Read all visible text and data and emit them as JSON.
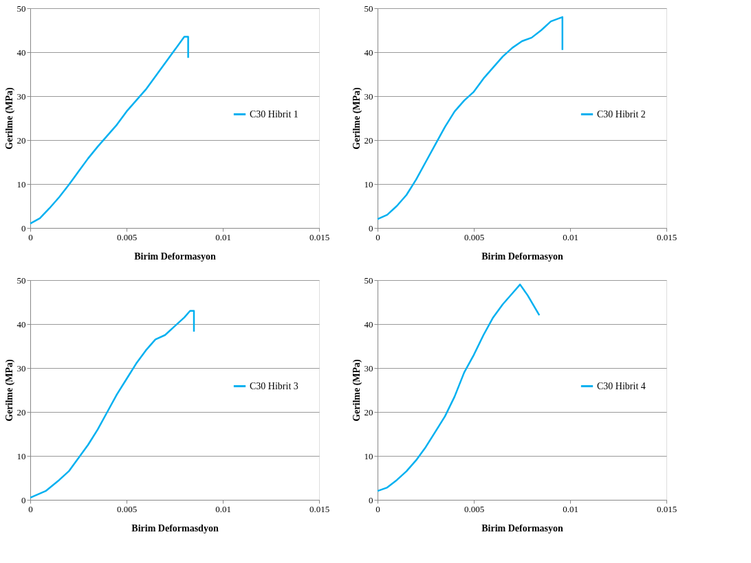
{
  "chart_data": [
    {
      "type": "line",
      "xlabel": "Birim Deformasyon",
      "ylabel": "Gerilme (MPa)",
      "xlim": [
        0,
        0.015
      ],
      "xticks": [
        0,
        0.005,
        0.01,
        0.015
      ],
      "ylim": [
        0,
        50
      ],
      "yticks": [
        0,
        10,
        20,
        30,
        40,
        50
      ],
      "grid": "y",
      "legend": "right",
      "marker": "none",
      "line_style": "solid",
      "series": [
        {
          "name": "C30 Hibrit 1",
          "color": "#00b0f0",
          "x": [
            0,
            0.0005,
            0.001,
            0.0015,
            0.002,
            0.0025,
            0.003,
            0.0035,
            0.004,
            0.0045,
            0.005,
            0.0055,
            0.006,
            0.0065,
            0.007,
            0.0075,
            0.008,
            0.0082,
            0.0082
          ],
          "values": [
            1,
            2.2,
            4.5,
            7,
            9.8,
            12.8,
            15.8,
            18.5,
            21,
            23.5,
            26.5,
            29,
            31.5,
            34.5,
            37.5,
            40.5,
            43.5,
            43.5,
            38.7
          ]
        }
      ]
    },
    {
      "type": "line",
      "xlabel": "Birim Deformasyon",
      "ylabel": "Gerilme (MPa)",
      "xlim": [
        0,
        0.015
      ],
      "xticks": [
        0,
        0.005,
        0.01,
        0.015
      ],
      "ylim": [
        0,
        50
      ],
      "yticks": [
        0,
        10,
        20,
        30,
        40,
        50
      ],
      "grid": "y",
      "legend": "right",
      "marker": "none",
      "line_style": "solid",
      "series": [
        {
          "name": "C30 Hibrit 2",
          "color": "#00b0f0",
          "x": [
            0,
            0.0005,
            0.001,
            0.0015,
            0.002,
            0.0025,
            0.003,
            0.0035,
            0.004,
            0.0045,
            0.005,
            0.0055,
            0.006,
            0.0065,
            0.007,
            0.0075,
            0.008,
            0.0085,
            0.009,
            0.0096,
            0.0096
          ],
          "values": [
            2,
            3,
            5,
            7.5,
            11,
            15,
            19,
            23,
            26.5,
            29,
            31,
            34,
            36.5,
            39,
            41,
            42.5,
            43.3,
            45,
            47,
            48,
            40.5
          ]
        }
      ]
    },
    {
      "type": "line",
      "xlabel": "Birim Deformasdyon",
      "ylabel": "Gerilme (MPa)",
      "xlim": [
        0,
        0.015
      ],
      "xticks": [
        0,
        0.005,
        0.01,
        0.015
      ],
      "ylim": [
        0,
        50
      ],
      "yticks": [
        0,
        10,
        20,
        30,
        40,
        50
      ],
      "grid": "y",
      "legend": "right",
      "marker": "none",
      "line_style": "solid",
      "series": [
        {
          "name": "C30 Hibrit 3",
          "color": "#00b0f0",
          "x": [
            0,
            0.0008,
            0.0015,
            0.002,
            0.0025,
            0.003,
            0.0035,
            0.004,
            0.0045,
            0.005,
            0.0055,
            0.006,
            0.0065,
            0.007,
            0.0075,
            0.008,
            0.0083,
            0.0085,
            0.0085
          ],
          "values": [
            0.5,
            2,
            4.5,
            6.5,
            9.5,
            12.5,
            16,
            20,
            24,
            27.5,
            31,
            34,
            36.5,
            37.5,
            39.5,
            41.5,
            43,
            43,
            38.3
          ]
        }
      ]
    },
    {
      "type": "line",
      "xlabel": "Birim Deformasyon",
      "ylabel": "Gerilme (MPa)",
      "xlim": [
        0,
        0.015
      ],
      "xticks": [
        0,
        0.005,
        0.01,
        0.015
      ],
      "ylim": [
        0,
        50
      ],
      "yticks": [
        0,
        10,
        20,
        30,
        40,
        50
      ],
      "grid": "y",
      "legend": "right",
      "marker": "none",
      "line_style": "solid",
      "series": [
        {
          "name": "C30 Hibrit 4",
          "color": "#00b0f0",
          "x": [
            0,
            0.0005,
            0.001,
            0.0015,
            0.002,
            0.0025,
            0.003,
            0.0035,
            0.004,
            0.0045,
            0.005,
            0.0055,
            0.006,
            0.0065,
            0.007,
            0.0074,
            0.0078,
            0.0084
          ],
          "values": [
            2,
            2.8,
            4.5,
            6.5,
            9,
            12,
            15.5,
            19,
            23.5,
            29,
            33,
            37.5,
            41.5,
            44.5,
            47,
            49,
            46.5,
            42
          ]
        }
      ]
    }
  ]
}
